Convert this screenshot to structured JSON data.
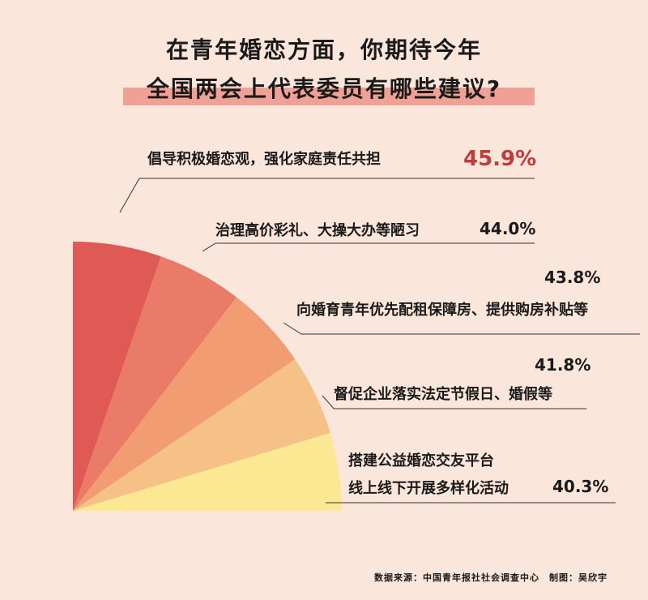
{
  "title_line1": "在青年婚恋方面，你期待今年",
  "title_line2": "全国两会上代表委员有哪些建议?",
  "chart_data": {
    "type": "pie",
    "categories": [
      "倡导积极婚恋观，强化家庭责任共担",
      "治理高价彩礼、大操大办等陋习",
      "向婚育青年优先配租保障房、提供购房补贴等",
      "督促企业落实法定节假日、婚假等",
      "搭建公益婚恋交友平台 线上线下开展多样化活动"
    ],
    "values": [
      45.9,
      44.0,
      43.8,
      41.8,
      40.3
    ],
    "value_labels": [
      "45.9%",
      "44.0%",
      "43.8%",
      "41.8%",
      "40.3%"
    ],
    "colors": [
      "#e05a55",
      "#ea7b68",
      "#f29c74",
      "#f6c186",
      "#fce792"
    ]
  },
  "labels": {
    "item1": "倡导积极婚恋观，强化家庭责任共担",
    "item2": "治理高价彩礼、大操大办等陋习",
    "item3": "向婚育青年优先配租保障房、提供购房补贴等",
    "item4": "督促企业落实法定节假日、婚假等",
    "item5_line1": "搭建公益婚恋交友平台",
    "item5_line2": "线上线下开展多样化活动",
    "pct1": "45.9%",
    "pct2": "44.0%",
    "pct3": "43.8%",
    "pct4": "41.8%",
    "pct5": "40.3%"
  },
  "source": "数据来源：中国青年报社社会调查中心　制图：吴欣宇"
}
